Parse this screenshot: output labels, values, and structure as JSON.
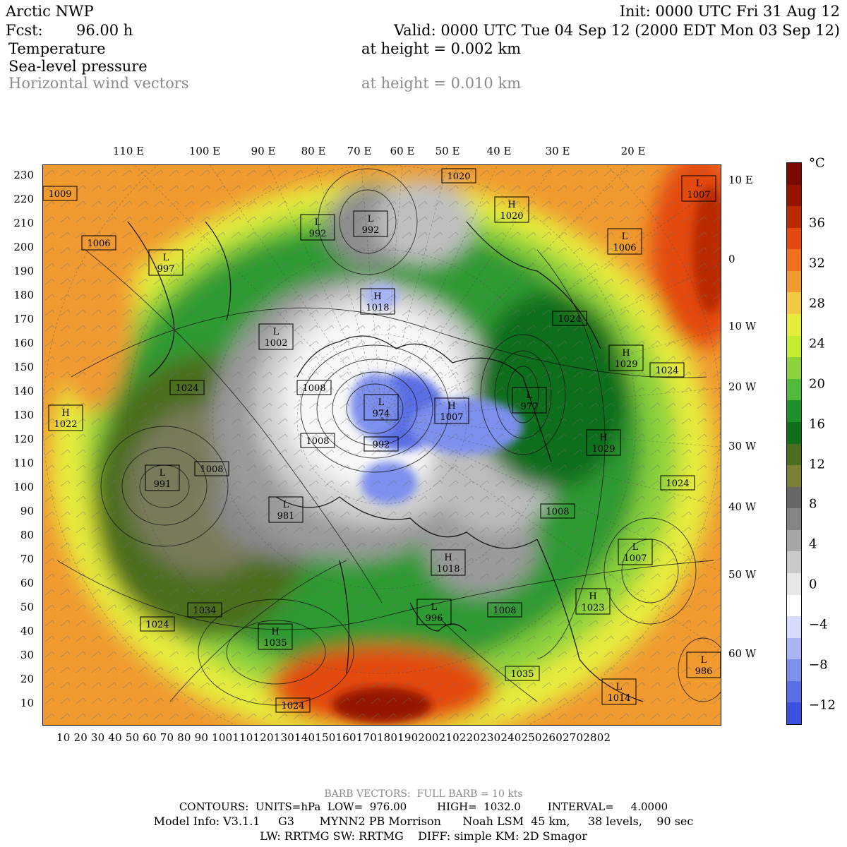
{
  "header": {
    "model": "Arctic NWP",
    "init": "Init: 0000 UTC Fri 31 Aug 12",
    "fcst_label": "Fcst:",
    "fcst_value": "96.00 h",
    "valid": "Valid: 0000 UTC Tue 04 Sep 12 (2000 EDT Mon 03 Sep 12)",
    "fields": [
      {
        "name": "Temperature",
        "height": "at height = 0.002 km"
      },
      {
        "name": "Sea-level pressure",
        "height": ""
      },
      {
        "name": "Horizontal wind vectors",
        "height": "at height = 0.010 km"
      }
    ]
  },
  "map": {
    "top_longitudes": [
      "110 E",
      "100 E",
      "90 E",
      "80 E",
      "70 E",
      "60 E",
      "50 E",
      "40 E",
      "30 E",
      "20 E"
    ],
    "right_longitudes": [
      "10 E",
      "0",
      "10 W",
      "20 W",
      "30 W",
      "40 W",
      "50 W",
      "60 W"
    ],
    "left_grid": [
      "230",
      "220",
      "210",
      "200",
      "190",
      "180",
      "170",
      "160",
      "150",
      "140",
      "130",
      "120",
      "110",
      "100",
      "90",
      "80",
      "70",
      "60",
      "50",
      "40",
      "30",
      "20",
      "10"
    ],
    "bottom_grid": "10 20 30 40 50 60 70 80 90 1001101201301401501601701801902002102202302402502602702802",
    "pressure_centers": [
      {
        "type": "",
        "value": "1009"
      },
      {
        "type": "",
        "value": "1006"
      },
      {
        "type": "L",
        "value": "997"
      },
      {
        "type": "L",
        "value": "992"
      },
      {
        "type": "L",
        "value": "992"
      },
      {
        "type": "",
        "value": "1020"
      },
      {
        "type": "H",
        "value": "1020"
      },
      {
        "type": "L",
        "value": "1007"
      },
      {
        "type": "L",
        "value": "1006"
      },
      {
        "type": "H",
        "value": "1018"
      },
      {
        "type": "L",
        "value": "1002"
      },
      {
        "type": "H",
        "value": "1029"
      },
      {
        "type": "",
        "value": "1024"
      },
      {
        "type": "",
        "value": "1024"
      },
      {
        "type": "",
        "value": "1024"
      },
      {
        "type": "H",
        "value": "1022"
      },
      {
        "type": "",
        "value": "1008"
      },
      {
        "type": "L",
        "value": "974"
      },
      {
        "type": "H",
        "value": "1007"
      },
      {
        "type": "L",
        "value": "977"
      },
      {
        "type": "",
        "value": "1008"
      },
      {
        "type": "",
        "value": "992"
      },
      {
        "type": "H",
        "value": "1029"
      },
      {
        "type": "",
        "value": "1008"
      },
      {
        "type": "L",
        "value": "991"
      },
      {
        "type": "L",
        "value": "981"
      },
      {
        "type": "",
        "value": "1024"
      },
      {
        "type": "",
        "value": "1008"
      },
      {
        "type": "H",
        "value": "1018"
      },
      {
        "type": "L",
        "value": "1007"
      },
      {
        "type": "",
        "value": "1034"
      },
      {
        "type": "",
        "value": "1024"
      },
      {
        "type": "L",
        "value": "996"
      },
      {
        "type": "",
        "value": "1008"
      },
      {
        "type": "H",
        "value": "1023"
      },
      {
        "type": "H",
        "value": "1035"
      },
      {
        "type": "",
        "value": "1024"
      },
      {
        "type": "",
        "value": "1035"
      },
      {
        "type": "L",
        "value": "1014"
      },
      {
        "type": "L",
        "value": "986"
      }
    ]
  },
  "colorbar": {
    "unit": "°C",
    "labels": [
      "36",
      "32",
      "28",
      "24",
      "20",
      "16",
      "12",
      "8",
      "4",
      "0",
      "−4",
      "−8",
      "−12"
    ],
    "colors": [
      "#7a0a00",
      "#951400",
      "#b92a00",
      "#e44a10",
      "#f07020",
      "#f09a30",
      "#f3c842",
      "#e6ec3c",
      "#c5ec30",
      "#8cd23c",
      "#52ba3a",
      "#1f8f28",
      "#0f6e1a",
      "#4b6d1e",
      "#7c8035",
      "#666666",
      "#858585",
      "#a6a6a6",
      "#c9c9c9",
      "#e6e6e6",
      "#ffffff",
      "#d6dcff",
      "#a8b4f4",
      "#7d90ee",
      "#5a6ee6",
      "#3c50e0"
    ]
  },
  "footer": {
    "barb": "BARB VECTORS:  FULL BARB = 10 kts",
    "contours": "CONTOURS:  UNITS=hPa  LOW=  976.00         HIGH=  1032.0        INTERVAL=     4.0000",
    "model_info": "Model Info: V3.1.1     G3       MYNN2 PB Morrison      Noah LSM  45 km,     38 levels,    90 sec",
    "physics": "LW: RRTMG SW: RRTMG    DIFF: simple KM: 2D Smagor"
  }
}
